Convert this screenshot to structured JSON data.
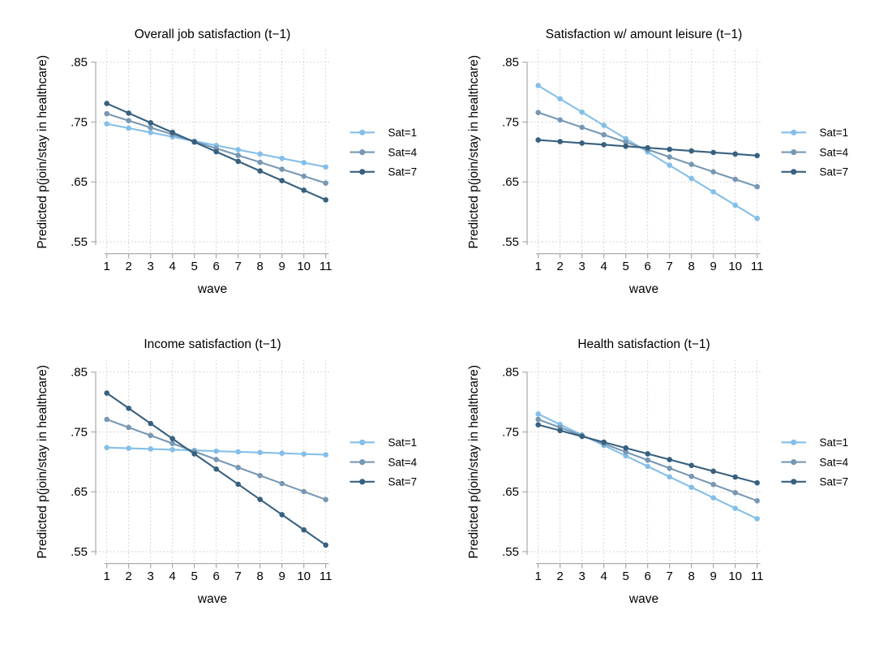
{
  "figure": {
    "background": "#ffffff",
    "ylabel": "Predicted p(join/stay in healthcare)",
    "xlabel": "wave",
    "legend_labels": [
      "Sat=1",
      "Sat=4",
      "Sat=7"
    ],
    "colors": {
      "sat1": "#84bfe8",
      "sat4": "#7798b4",
      "sat7": "#38607f",
      "grid": "#c9c9c9",
      "axis": "#a3a3a3",
      "text": "#000000"
    }
  },
  "chart_data": [
    {
      "type": "line",
      "title": "Overall job satisfaction (t−1)",
      "xlabel": "wave",
      "ylabel": "Predicted p(join/stay in healthcare)",
      "x": [
        1,
        2,
        3,
        4,
        5,
        6,
        7,
        8,
        9,
        10,
        11
      ],
      "xlim": [
        1,
        11
      ],
      "ylim": [
        0.55,
        0.85
      ],
      "y_ticks": [
        {
          "v": 0.85,
          "label": ".85"
        },
        {
          "v": 0.75,
          "label": ".75"
        },
        {
          "v": 0.65,
          "label": ".65"
        },
        {
          "v": 0.55,
          "label": ".55"
        }
      ],
      "grid": true,
      "legend_position": "right",
      "series": [
        {
          "name": "Sat=1",
          "color_key": "sat1",
          "values": [
            0.747,
            0.7398,
            0.7326,
            0.7254,
            0.7182,
            0.711,
            0.7038,
            0.6966,
            0.6894,
            0.6822,
            0.675
          ]
        },
        {
          "name": "Sat=4",
          "color_key": "sat4",
          "values": [
            0.764,
            0.7524,
            0.7408,
            0.7292,
            0.7176,
            0.706,
            0.6944,
            0.6828,
            0.6712,
            0.6596,
            0.648
          ]
        },
        {
          "name": "Sat=7",
          "color_key": "sat7",
          "values": [
            0.781,
            0.7649,
            0.7488,
            0.7327,
            0.7166,
            0.7005,
            0.6844,
            0.6683,
            0.6522,
            0.6361,
            0.62
          ]
        }
      ]
    },
    {
      "type": "line",
      "title": "Satisfaction w/ amount leisure (t−1)",
      "xlabel": "wave",
      "ylabel": "Predicted p(join/stay in healthcare)",
      "x": [
        1,
        2,
        3,
        4,
        5,
        6,
        7,
        8,
        9,
        10,
        11
      ],
      "xlim": [
        1,
        11
      ],
      "ylim": [
        0.55,
        0.85
      ],
      "y_ticks": [
        {
          "v": 0.85,
          "label": ".85"
        },
        {
          "v": 0.75,
          "label": ".75"
        },
        {
          "v": 0.65,
          "label": ".65"
        },
        {
          "v": 0.55,
          "label": ".55"
        }
      ],
      "grid": true,
      "legend_position": "right",
      "series": [
        {
          "name": "Sat=1",
          "color_key": "sat1",
          "values": [
            0.811,
            0.7888,
            0.7666,
            0.7444,
            0.7222,
            0.7,
            0.6778,
            0.6556,
            0.6334,
            0.6112,
            0.589
          ]
        },
        {
          "name": "Sat=4",
          "color_key": "sat4",
          "values": [
            0.766,
            0.7536,
            0.7412,
            0.7288,
            0.7164,
            0.704,
            0.6916,
            0.6792,
            0.6668,
            0.6544,
            0.642
          ]
        },
        {
          "name": "Sat=7",
          "color_key": "sat7",
          "values": [
            0.72,
            0.7174,
            0.7148,
            0.7122,
            0.7096,
            0.707,
            0.7044,
            0.7018,
            0.6992,
            0.6966,
            0.694
          ]
        }
      ]
    },
    {
      "type": "line",
      "title": "Income satisfaction (t−1)",
      "xlabel": "wave",
      "ylabel": "Predicted p(join/stay in healthcare)",
      "x": [
        1,
        2,
        3,
        4,
        5,
        6,
        7,
        8,
        9,
        10,
        11
      ],
      "xlim": [
        1,
        11
      ],
      "ylim": [
        0.55,
        0.85
      ],
      "y_ticks": [
        {
          "v": 0.85,
          "label": ".85"
        },
        {
          "v": 0.75,
          "label": ".75"
        },
        {
          "v": 0.65,
          "label": ".65"
        },
        {
          "v": 0.55,
          "label": ".55"
        }
      ],
      "grid": true,
      "legend_position": "right",
      "series": [
        {
          "name": "Sat=1",
          "color_key": "sat1",
          "values": [
            0.724,
            0.7228,
            0.7216,
            0.7204,
            0.7192,
            0.718,
            0.7168,
            0.7156,
            0.7144,
            0.7132,
            0.712
          ]
        },
        {
          "name": "Sat=4",
          "color_key": "sat4",
          "values": [
            0.771,
            0.7576,
            0.7442,
            0.7308,
            0.7174,
            0.704,
            0.6906,
            0.6772,
            0.6638,
            0.6504,
            0.637
          ]
        },
        {
          "name": "Sat=7",
          "color_key": "sat7",
          "values": [
            0.815,
            0.7896,
            0.7642,
            0.7388,
            0.7134,
            0.688,
            0.6626,
            0.6372,
            0.6118,
            0.5864,
            0.561
          ]
        }
      ]
    },
    {
      "type": "line",
      "title": "Health satisfaction (t−1)",
      "xlabel": "wave",
      "ylabel": "Predicted p(join/stay in healthcare)",
      "x": [
        1,
        2,
        3,
        4,
        5,
        6,
        7,
        8,
        9,
        10,
        11
      ],
      "xlim": [
        1,
        11
      ],
      "ylim": [
        0.55,
        0.85
      ],
      "y_ticks": [
        {
          "v": 0.85,
          "label": ".85"
        },
        {
          "v": 0.75,
          "label": ".75"
        },
        {
          "v": 0.65,
          "label": ".65"
        },
        {
          "v": 0.55,
          "label": ".55"
        }
      ],
      "grid": true,
      "legend_position": "right",
      "series": [
        {
          "name": "Sat=1",
          "color_key": "sat1",
          "values": [
            0.78,
            0.7625,
            0.745,
            0.7275,
            0.71,
            0.6925,
            0.675,
            0.6575,
            0.64,
            0.6225,
            0.605
          ]
        },
        {
          "name": "Sat=4",
          "color_key": "sat4",
          "values": [
            0.771,
            0.7574,
            0.7438,
            0.7302,
            0.7166,
            0.703,
            0.6894,
            0.6758,
            0.6622,
            0.6486,
            0.635
          ]
        },
        {
          "name": "Sat=7",
          "color_key": "sat7",
          "values": [
            0.762,
            0.7523,
            0.7426,
            0.7329,
            0.7232,
            0.7135,
            0.7038,
            0.6941,
            0.6844,
            0.6747,
            0.665
          ]
        }
      ]
    }
  ]
}
